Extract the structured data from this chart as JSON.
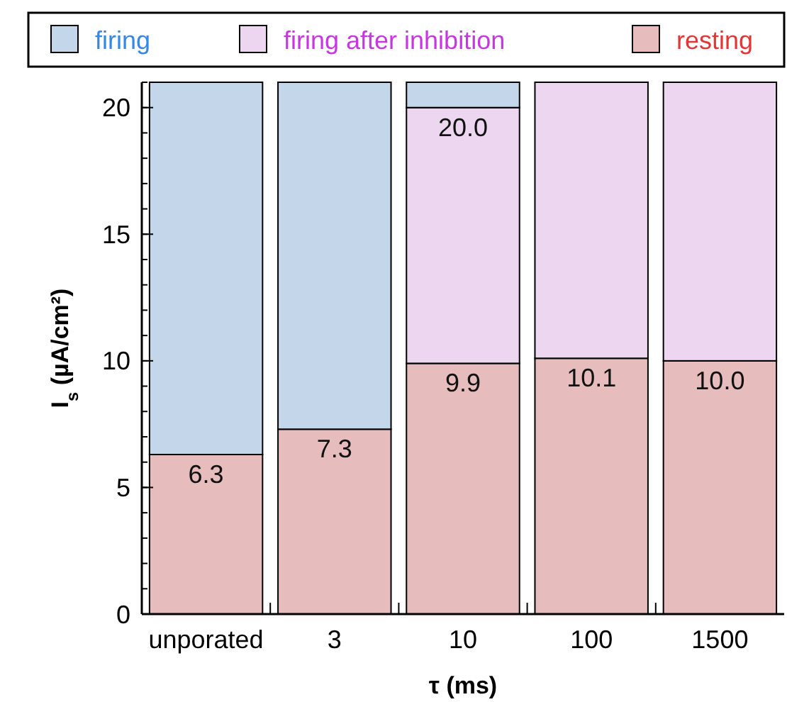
{
  "chart_data": {
    "type": "bar",
    "stacked": true,
    "xlabel": "τ (ms)",
    "ylabel": "I$_{s}$ (µA/cm²)",
    "categories": [
      "unporated",
      "3",
      "10",
      "100",
      "1500"
    ],
    "series": [
      {
        "name": "resting",
        "color": "#e6bcbc",
        "values": [
          6.3,
          7.3,
          9.9,
          10.1,
          10.0
        ],
        "value_labels": [
          "6.3",
          "7.3",
          "9.9",
          "10.1",
          "10.0"
        ]
      },
      {
        "name": "firing after inhibition",
        "color": "#ecd6f0",
        "values": [
          0,
          0,
          10.1,
          10.9,
          11.0
        ]
      },
      {
        "name": "firing",
        "color": "#c4d6ea",
        "values": [
          14.7,
          13.7,
          1.0,
          0,
          0
        ]
      }
    ],
    "annotations": [
      {
        "text": "20.0",
        "x": "10",
        "y": 20
      }
    ],
    "ylim": [
      0,
      21
    ],
    "yticks": [
      0,
      5,
      10,
      15,
      20
    ],
    "legend": "top",
    "grid": false
  }
}
